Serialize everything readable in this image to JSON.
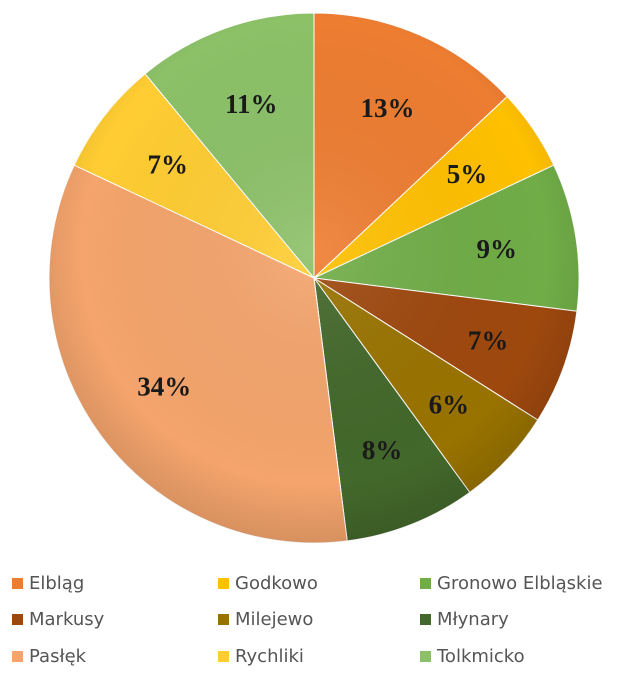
{
  "chart_data": {
    "type": "pie",
    "start_angle_deg": 0,
    "direction": "clockwise",
    "slices": [
      {
        "label": "Elbląg",
        "value": 13,
        "label_text": "13%",
        "color": "#ED7D31"
      },
      {
        "label": "Godkowo",
        "value": 5,
        "label_text": "5%",
        "color": "#FFC000"
      },
      {
        "label": "Gronowo Elbląskie",
        "value": 9,
        "label_text": "9%",
        "color": "#70AD47"
      },
      {
        "label": "Markusy",
        "value": 7,
        "label_text": "7%",
        "color": "#9E480E"
      },
      {
        "label": "Milejewo",
        "value": 6,
        "label_text": "6%",
        "color": "#997300"
      },
      {
        "label": "Młynary",
        "value": 8,
        "label_text": "8%",
        "color": "#43682B"
      },
      {
        "label": "Pasłęk",
        "value": 34,
        "label_text": "34%",
        "color": "#F4A46C"
      },
      {
        "label": "Rychliki",
        "value": 7,
        "label_text": "7%",
        "color": "#FFCD33"
      },
      {
        "label": "Tolkmicko",
        "value": 11,
        "label_text": "11%",
        "color": "#8CC168"
      }
    ],
    "legend": {
      "position": "bottom",
      "columns": 3,
      "entries": [
        "Elbląg",
        "Godkowo",
        "Gronowo Elbląskie",
        "Markusy",
        "Milejewo",
        "Młynary",
        "Pasłęk",
        "Rychliki",
        "Tolkmicko"
      ]
    }
  }
}
